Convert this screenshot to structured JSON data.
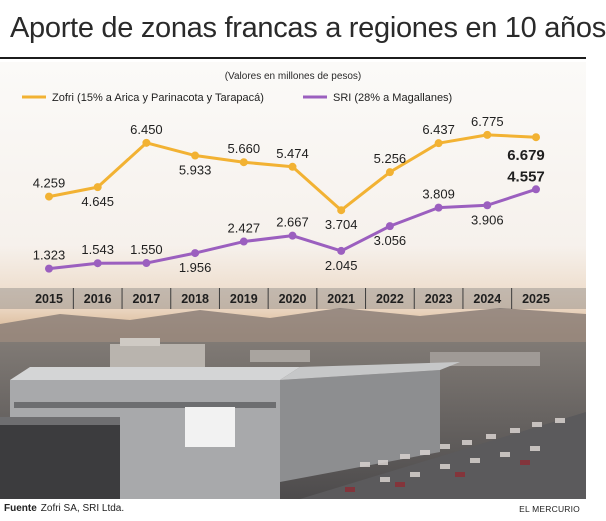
{
  "title": "Aporte de zonas francas a regiones en 10 años",
  "footer": {
    "source_label": "Fuente",
    "source_text": "Zofri SA, SRI Ltda.",
    "credit": "EL MERCURIO"
  },
  "colors": {
    "zofri": "#f2b233",
    "sri": "#9b5fbf",
    "axis_band": "#6f6f6f"
  },
  "chart_data": {
    "type": "line",
    "subtitle": "(Valores en millones de pesos)",
    "categories": [
      "2015",
      "2016",
      "2017",
      "2018",
      "2019",
      "2020",
      "2021",
      "2022",
      "2023",
      "2024",
      "2025"
    ],
    "series": [
      {
        "name": "Zofri (15% a Arica y Parinacota y Tarapacá)",
        "values": [
          4259,
          4645,
          6450,
          5933,
          5660,
          5474,
          3704,
          5256,
          6437,
          6775,
          6679
        ],
        "labels": [
          "4.259",
          "4.645",
          "6.450",
          "5.933",
          "5.660",
          "5.474",
          "3.704",
          "5.256",
          "6.437",
          "6.775",
          "6.679"
        ]
      },
      {
        "name": "SRI (28% a Magallanes)",
        "values": [
          1323,
          1543,
          1550,
          1956,
          2427,
          2667,
          2045,
          3056,
          3809,
          3906,
          4557
        ],
        "labels": [
          "1.323",
          "1.543",
          "1.550",
          "1.956",
          "2.427",
          "2.667",
          "2.045",
          "3.056",
          "3.809",
          "3.906",
          "4.557"
        ]
      }
    ],
    "ylim": [
      900,
      7300
    ],
    "legend": "top",
    "grid": false
  }
}
